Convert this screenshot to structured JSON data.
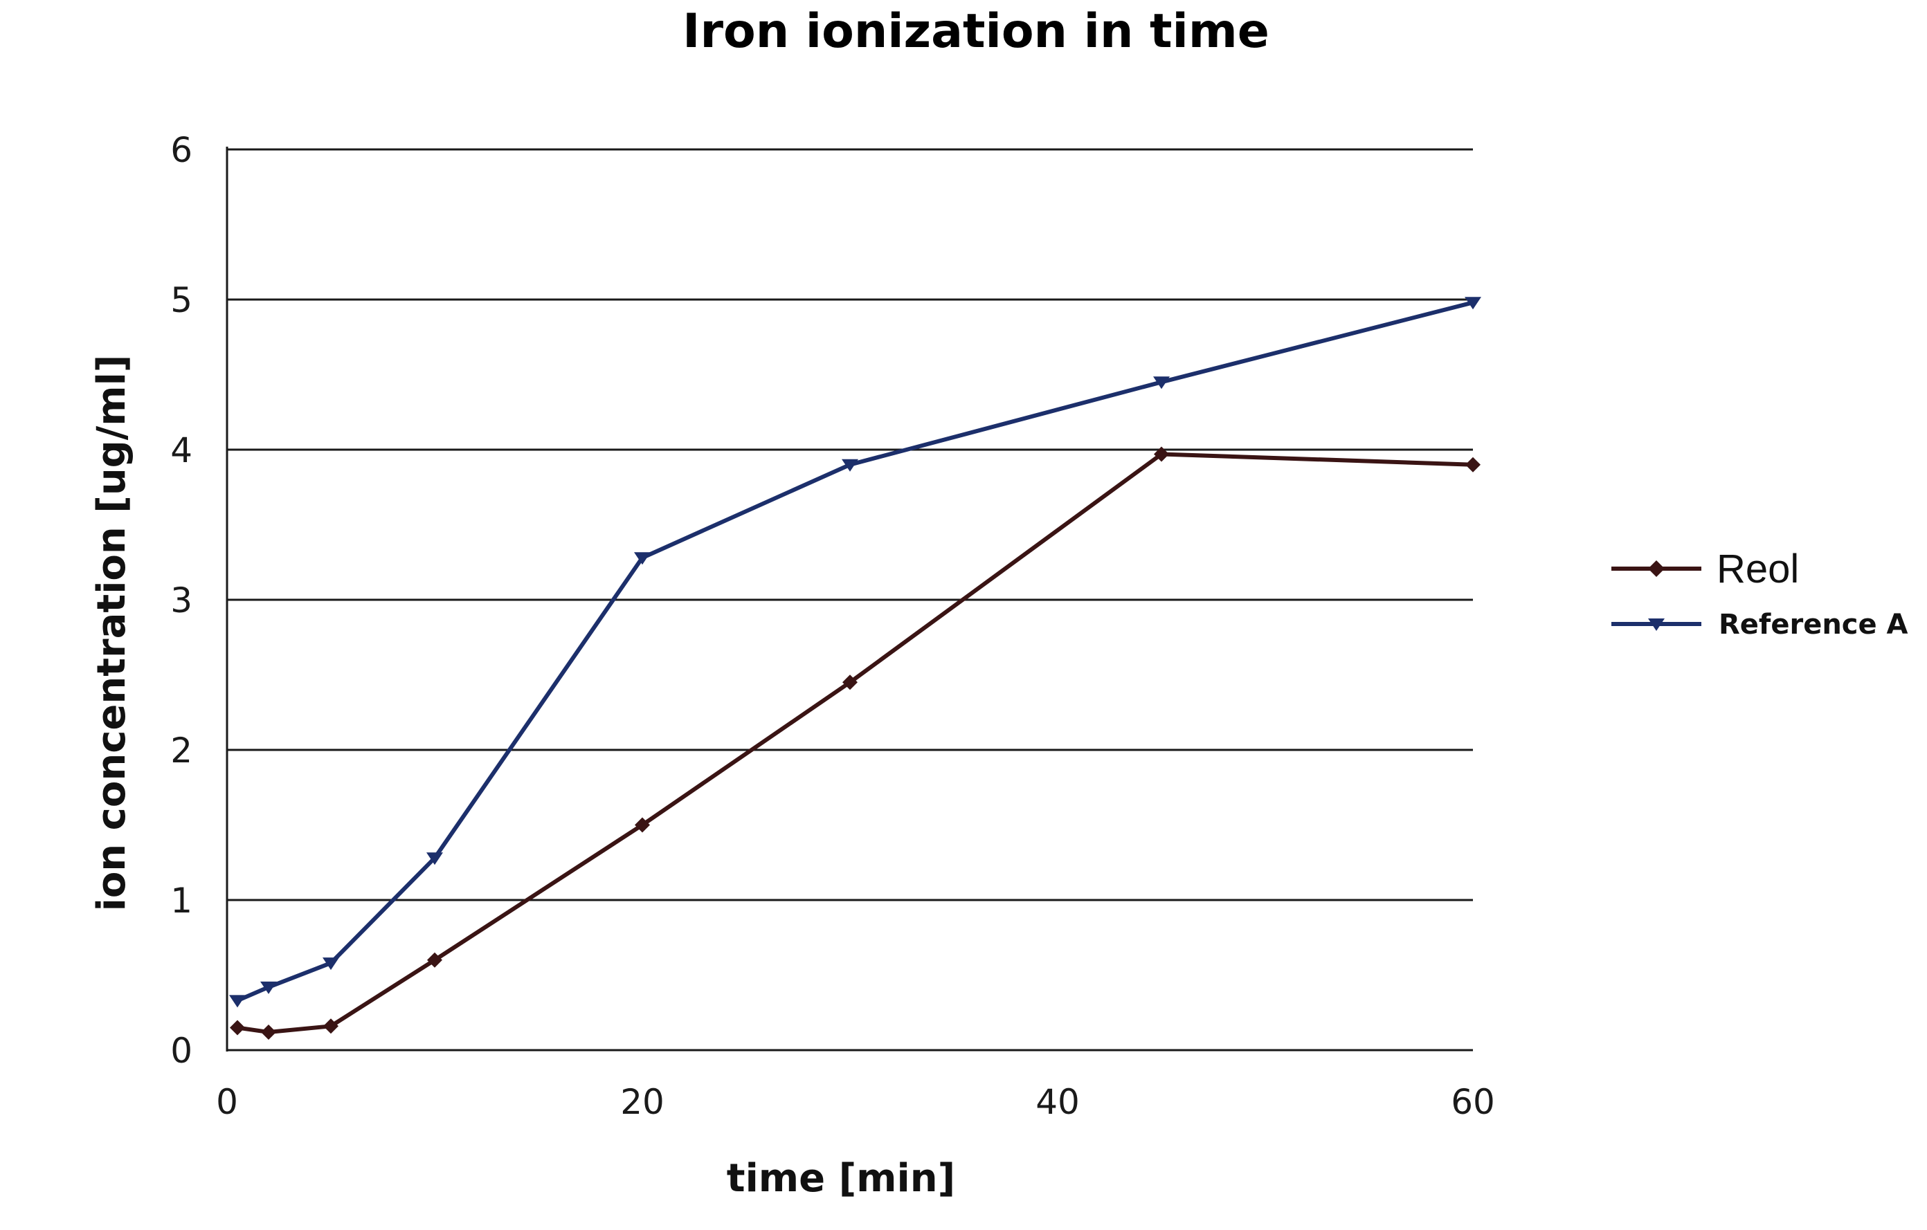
{
  "chart_data": {
    "type": "line",
    "title": "Iron ionization in time",
    "xlabel": "time [min]",
    "ylabel": "ion concentration [ug/ml]",
    "xlim": [
      0,
      60
    ],
    "ylim": [
      0,
      6
    ],
    "x_ticks": [
      "0",
      "20",
      "40",
      "60"
    ],
    "x_tick_values": [
      0,
      20,
      40,
      60
    ],
    "y_ticks": [
      "0",
      "1",
      "2",
      "3",
      "4",
      "5",
      "6"
    ],
    "y_tick_values": [
      0,
      1,
      2,
      3,
      4,
      5,
      6
    ],
    "grid": "horizontal",
    "legend_position": "right",
    "series": [
      {
        "name": "Reol",
        "color": "#3a1414",
        "marker": "diamond",
        "x": [
          0.5,
          2,
          5,
          10,
          20,
          30,
          45,
          60
        ],
        "y": [
          0.15,
          0.12,
          0.16,
          0.6,
          1.5,
          2.45,
          3.97,
          3.9
        ]
      },
      {
        "name": "Reference A",
        "color": "#1c2f6b",
        "marker": "triangle-down",
        "x": [
          0.5,
          2,
          5,
          10,
          20,
          30,
          45,
          60
        ],
        "y": [
          0.33,
          0.42,
          0.58,
          1.28,
          3.28,
          3.9,
          4.45,
          4.98
        ]
      }
    ]
  }
}
